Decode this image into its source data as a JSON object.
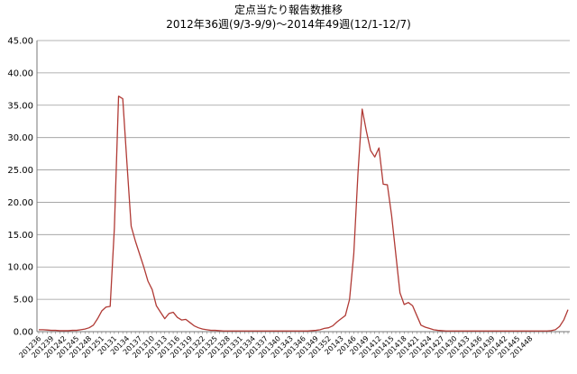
{
  "chart_data": {
    "type": "line",
    "title": "定点当たり報告数推移",
    "subtitle": "2012年36週(9/3-9/9)～2014年49週(12/1-12/7)",
    "xlabel": "",
    "ylabel": "",
    "ylim": [
      0,
      45
    ],
    "yticks": [
      "45.00",
      "40.00",
      "35.00",
      "30.00",
      "25.00",
      "20.00",
      "15.00",
      "10.00",
      "5.00",
      "0.00"
    ],
    "grid": true,
    "legend": "none",
    "line_color": "#b03a35",
    "xtick_labels": [
      "201236",
      "201239",
      "201242",
      "201245",
      "201248",
      "201251",
      "20131",
      "20134",
      "20137",
      "201310",
      "201313",
      "201316",
      "201319",
      "201322",
      "201325",
      "201328",
      "201331",
      "201334",
      "201337",
      "201340",
      "201343",
      "201346",
      "201349",
      "201352",
      "20143",
      "20146",
      "20149",
      "201412",
      "201415",
      "201418",
      "201421",
      "201424",
      "201427",
      "201430",
      "201433",
      "201436",
      "201439",
      "201442",
      "201445",
      "201448"
    ],
    "series": [
      {
        "values": [
          0.3,
          0.3,
          0.25,
          0.2,
          0.2,
          0.15,
          0.15,
          0.15,
          0.2,
          0.2,
          0.3,
          0.4,
          0.6,
          1.0,
          2.0,
          3.2,
          3.8,
          3.9,
          16.0,
          36.4,
          36.0,
          26.0,
          16.3,
          14.0,
          12.0,
          10.0,
          7.8,
          6.5,
          4.0,
          3.0,
          2.0,
          2.8,
          3.0,
          2.2,
          1.8,
          1.9,
          1.4,
          0.9,
          0.6,
          0.4,
          0.3,
          0.2,
          0.2,
          0.15,
          0.1,
          0.1,
          0.1,
          0.1,
          0.1,
          0.1,
          0.1,
          0.1,
          0.1,
          0.1,
          0.1,
          0.1,
          0.1,
          0.1,
          0.1,
          0.1,
          0.1,
          0.1,
          0.1,
          0.1,
          0.1,
          0.15,
          0.2,
          0.3,
          0.5,
          0.6,
          0.9,
          1.5,
          2.0,
          2.5,
          5.0,
          12.0,
          24.5,
          34.4,
          31.0,
          28.0,
          27.0,
          28.4,
          22.8,
          22.7,
          18.0,
          12.0,
          6.0,
          4.2,
          4.5,
          4.0,
          2.5,
          1.0,
          0.7,
          0.5,
          0.3,
          0.2,
          0.15,
          0.1,
          0.1,
          0.1,
          0.1,
          0.1,
          0.1,
          0.1,
          0.1,
          0.1,
          0.1,
          0.1,
          0.1,
          0.1,
          0.1,
          0.1,
          0.1,
          0.1,
          0.1,
          0.1,
          0.1,
          0.1,
          0.1,
          0.1,
          0.1,
          0.1,
          0.15,
          0.3,
          0.8,
          1.8,
          3.4
        ]
      }
    ]
  }
}
